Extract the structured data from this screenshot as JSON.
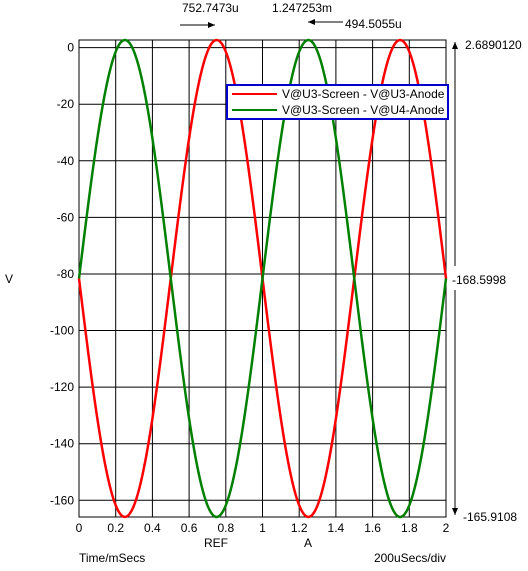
{
  "chart_data": {
    "type": "line",
    "ylabel": "V",
    "xlabel": "Time/mSecs",
    "x_division": "200uSecs/div",
    "xlim": [
      0,
      2
    ],
    "ylim": [
      -165.9108,
      2.689012
    ],
    "x_ticks": [
      "0",
      "0.2",
      "0.4",
      "0.6",
      "0.8",
      "1",
      "1.2",
      "1.4",
      "1.6",
      "1.8",
      "2"
    ],
    "y_ticks": [
      "0",
      "-20",
      "-40",
      "-60",
      "-80",
      "-100",
      "-120",
      "-140",
      "-160"
    ],
    "cursor_labels": {
      "ref": "REF",
      "a": "A"
    },
    "measurements": {
      "top_left": "752.7473u",
      "top_middle": "1.247253m",
      "top_right": "494.5055u",
      "right_max": "2.6890120",
      "right_mid": "-168.5998",
      "right_min": "-165.9108"
    },
    "series": [
      {
        "name": "V@U3-Screen - V@U3-Anode",
        "color": "#ff0000",
        "x": [
          0,
          0.25,
          0.5,
          0.75,
          1.0,
          1.25,
          1.5,
          1.75,
          2.0
        ],
        "y": [
          -81.6,
          -165.9,
          -81.6,
          2.69,
          -81.6,
          -165.9,
          -81.6,
          2.69,
          -81.6
        ]
      },
      {
        "name": "V@U3-Screen - V@U4-Anode",
        "color": "#008000",
        "x": [
          0,
          0.25,
          0.5,
          0.75,
          1.0,
          1.25,
          1.5,
          1.75,
          2.0
        ],
        "y": [
          -81.6,
          2.69,
          -81.6,
          -165.9,
          -81.6,
          2.69,
          -81.6,
          -165.9,
          -81.6
        ]
      }
    ]
  }
}
